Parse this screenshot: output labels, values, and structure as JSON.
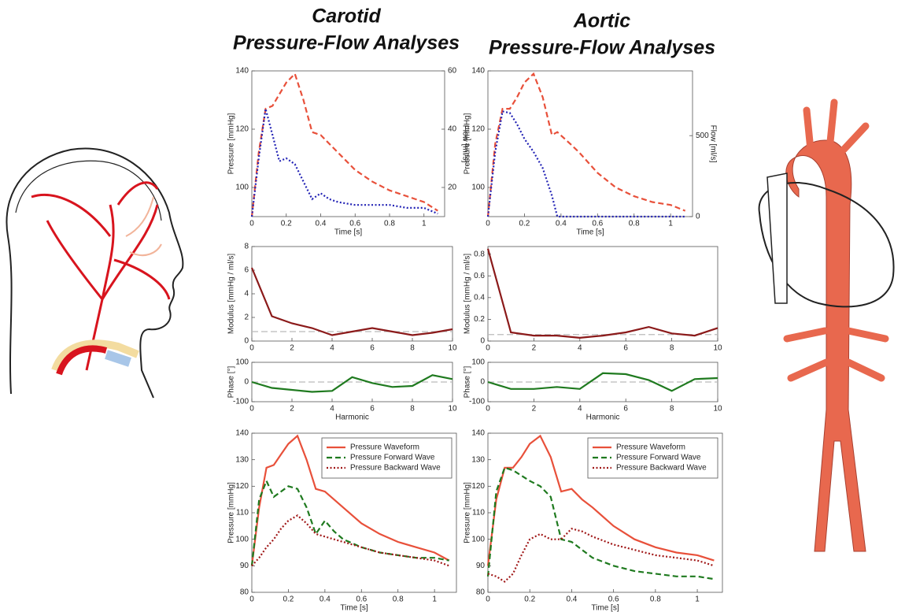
{
  "columns": [
    {
      "title": "Carotid",
      "subtitle": "Pressure-Flow Analyses"
    },
    {
      "title": "Aortic",
      "subtitle": "Pressure-Flow Analyses"
    }
  ],
  "chart_data": [
    {
      "type": "line",
      "x_label": "Time [s]",
      "y_label": "Pressure [mmHg]",
      "y2_label": "Flow [ml/s]",
      "y_color": "#e8503a",
      "y2_color": "#2323b5",
      "x": [
        0,
        0.04,
        0.08,
        0.12,
        0.16,
        0.2,
        0.25,
        0.3,
        0.35,
        0.4,
        0.45,
        0.5,
        0.6,
        0.7,
        0.8,
        0.9,
        1.0,
        1.08
      ],
      "xlim": [
        0,
        1.12
      ],
      "xticks": [
        0,
        0.2,
        0.4,
        0.6,
        0.8,
        1
      ],
      "ylim": [
        90,
        140
      ],
      "yticks": [
        100,
        120,
        140
      ],
      "y2lim": [
        10,
        60
      ],
      "y2ticks": [
        20,
        40,
        60
      ],
      "series": [
        {
          "color": "#e8503a",
          "style": "dashed",
          "values": [
            90,
            112,
            127,
            128,
            132,
            136,
            139,
            130,
            119,
            118,
            115,
            112,
            106,
            102,
            99,
            97,
            95,
            92
          ]
        },
        {
          "color": "#2323b5",
          "style": "dotted",
          "axis": "y2",
          "values": [
            10,
            30,
            47,
            38,
            29,
            30,
            28,
            22,
            16,
            18,
            16,
            15,
            14,
            14,
            14,
            13,
            13,
            11
          ]
        }
      ]
    },
    {
      "type": "line",
      "y_label": "Modulus [mmHg / ml/s]",
      "x": [
        0,
        1,
        2,
        3,
        4,
        5,
        6,
        7,
        8,
        9,
        10
      ],
      "xlim": [
        0,
        10
      ],
      "xticks": [
        0,
        2,
        4,
        6,
        8,
        10
      ],
      "ylim": [
        0,
        8
      ],
      "yticks": [
        0,
        2,
        4,
        6,
        8
      ],
      "reference_line": 0.8,
      "series": [
        {
          "color": "#8b1a1a",
          "style": "solid",
          "values": [
            6.2,
            2.1,
            1.5,
            1.1,
            0.5,
            0.8,
            1.1,
            0.8,
            0.5,
            0.7,
            1.0
          ]
        }
      ]
    },
    {
      "type": "line",
      "x_label": "Harmonic",
      "y_label": "Phase [°]",
      "x": [
        0,
        1,
        2,
        3,
        4,
        5,
        6,
        7,
        8,
        9,
        10
      ],
      "xlim": [
        0,
        10
      ],
      "xticks": [
        0,
        2,
        4,
        6,
        8,
        10
      ],
      "ylim": [
        -100,
        100
      ],
      "yticks": [
        -100,
        0,
        100
      ],
      "reference_line": 0,
      "series": [
        {
          "color": "#1f7a1f",
          "style": "solid",
          "values": [
            0,
            -30,
            -40,
            -50,
            -45,
            25,
            -5,
            -25,
            -20,
            35,
            15
          ]
        }
      ]
    },
    {
      "type": "line",
      "x_label": "Time [s]",
      "y_label": "Pressure [mmHg]",
      "x": [
        0,
        0.04,
        0.08,
        0.12,
        0.16,
        0.2,
        0.25,
        0.3,
        0.35,
        0.4,
        0.45,
        0.5,
        0.6,
        0.7,
        0.8,
        0.9,
        1.0,
        1.08
      ],
      "xlim": [
        0,
        1.12
      ],
      "xticks": [
        0,
        0.2,
        0.4,
        0.6,
        0.8,
        1
      ],
      "ylim": [
        80,
        140
      ],
      "yticks": [
        80,
        90,
        100,
        110,
        120,
        130,
        140
      ],
      "legend": "upper right",
      "series": [
        {
          "name": "Pressure Waveform",
          "color": "#e8503a",
          "style": "solid",
          "values": [
            90,
            112,
            127,
            128,
            132,
            136,
            139,
            130,
            119,
            118,
            115,
            112,
            106,
            102,
            99,
            97,
            95,
            92
          ]
        },
        {
          "name": "Pressure Forward Wave",
          "color": "#1f7a1f",
          "style": "dashed",
          "values": [
            90,
            115,
            122,
            116,
            118,
            120,
            119,
            112,
            102,
            107,
            103,
            100,
            97,
            95,
            94,
            93,
            93,
            92
          ]
        },
        {
          "name": "Pressure Backward Wave",
          "color": "#a01818",
          "style": "dotted",
          "values": [
            90,
            93,
            97,
            100,
            104,
            107,
            109,
            106,
            102,
            101,
            100,
            99,
            97,
            95,
            94,
            93,
            92,
            90
          ]
        }
      ]
    },
    {
      "type": "line",
      "x_label": "Time [s]",
      "y_label": "Pressure [mmHg]",
      "y2_label": "Flow [ml/s]",
      "y_color": "#e8503a",
      "y2_color": "#2323b5",
      "x": [
        0,
        0.04,
        0.08,
        0.12,
        0.16,
        0.2,
        0.25,
        0.3,
        0.35,
        0.38,
        0.45,
        0.5,
        0.6,
        0.7,
        0.8,
        0.9,
        1.0,
        1.08
      ],
      "xlim": [
        0,
        1.12
      ],
      "xticks": [
        0,
        0.2,
        0.4,
        0.6,
        0.8,
        1
      ],
      "ylim": [
        90,
        140
      ],
      "yticks": [
        100,
        120,
        140
      ],
      "y2lim": [
        0,
        900
      ],
      "y2ticks": [
        0,
        500
      ],
      "series": [
        {
          "color": "#e8503a",
          "style": "dashed",
          "values": [
            90,
            115,
            127,
            127,
            131,
            136,
            139,
            131,
            118,
            119,
            115,
            112,
            105,
            100,
            97,
            95,
            94,
            92
          ]
        },
        {
          "color": "#2323b5",
          "style": "dotted",
          "axis": "y2",
          "values": [
            0,
            400,
            650,
            640,
            570,
            480,
            400,
            300,
            130,
            0,
            0,
            0,
            0,
            0,
            0,
            0,
            0,
            0
          ]
        }
      ]
    },
    {
      "type": "line",
      "y_label": "Modulus [mmHg / ml/s]",
      "x": [
        0,
        1,
        2,
        3,
        4,
        5,
        6,
        7,
        8,
        9,
        10
      ],
      "xlim": [
        0,
        10
      ],
      "xticks": [
        0,
        2,
        4,
        6,
        8,
        10
      ],
      "ylim": [
        0,
        0.87
      ],
      "yticks": [
        0,
        0.2,
        0.4,
        0.6,
        0.8
      ],
      "reference_line": 0.06,
      "series": [
        {
          "color": "#8b1a1a",
          "style": "solid",
          "values": [
            0.85,
            0.08,
            0.05,
            0.05,
            0.03,
            0.05,
            0.08,
            0.13,
            0.07,
            0.05,
            0.12
          ]
        }
      ]
    },
    {
      "type": "line",
      "x_label": "Harmonic",
      "y_label": "Phase [°]",
      "x": [
        0,
        1,
        2,
        3,
        4,
        5,
        6,
        7,
        8,
        9,
        10
      ],
      "xlim": [
        0,
        10
      ],
      "xticks": [
        0,
        2,
        4,
        6,
        8,
        10
      ],
      "ylim": [
        -100,
        100
      ],
      "yticks": [
        -100,
        0,
        100
      ],
      "reference_line": 0,
      "series": [
        {
          "color": "#1f7a1f",
          "style": "solid",
          "values": [
            0,
            -35,
            -35,
            -25,
            -35,
            45,
            40,
            10,
            -45,
            15,
            20
          ]
        }
      ]
    },
    {
      "type": "line",
      "x_label": "Time [s]",
      "y_label": "Pressure [mmHg]",
      "x": [
        0,
        0.04,
        0.08,
        0.12,
        0.16,
        0.2,
        0.25,
        0.3,
        0.35,
        0.4,
        0.45,
        0.5,
        0.6,
        0.7,
        0.8,
        0.9,
        1.0,
        1.08
      ],
      "xlim": [
        0,
        1.12
      ],
      "xticks": [
        0,
        0.2,
        0.4,
        0.6,
        0.8,
        1
      ],
      "ylim": [
        80,
        140
      ],
      "yticks": [
        80,
        90,
        100,
        110,
        120,
        130,
        140
      ],
      "legend": "upper right",
      "series": [
        {
          "name": "Pressure Waveform",
          "color": "#e8503a",
          "style": "solid",
          "values": [
            90,
            115,
            127,
            127,
            131,
            136,
            139,
            131,
            118,
            119,
            115,
            112,
            105,
            100,
            97,
            95,
            94,
            92
          ]
        },
        {
          "name": "Pressure Forward Wave",
          "color": "#1f7a1f",
          "style": "dashed",
          "values": [
            86,
            118,
            127,
            126,
            124,
            122,
            120,
            116,
            100,
            99,
            96,
            93,
            90,
            88,
            87,
            86,
            86,
            85
          ]
        },
        {
          "name": "Pressure Backward Wave",
          "color": "#a01818",
          "style": "dotted",
          "values": [
            87,
            86,
            84,
            87,
            94,
            100,
            102,
            100,
            100,
            104,
            103,
            101,
            98,
            96,
            94,
            93,
            92,
            90
          ]
        }
      ]
    }
  ]
}
